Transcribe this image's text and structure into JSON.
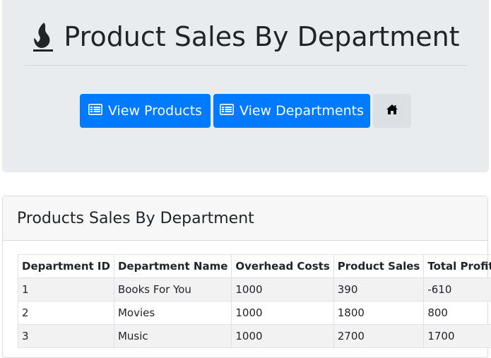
{
  "header": {
    "title": "Product Sales By Department",
    "logo_icon": "flame-icon"
  },
  "nav": {
    "view_products_label": "View Products",
    "view_departments_label": "View Departments",
    "home_icon": "home-icon",
    "button_icon": "list-icon"
  },
  "panel": {
    "title": "Products Sales By Department",
    "columns": [
      "Department ID",
      "Department Name",
      "Overhead Costs",
      "Product Sales",
      "Total Profit"
    ],
    "rows": [
      [
        "1",
        "Books For You",
        "1000",
        "390",
        "-610"
      ],
      [
        "2",
        "Movies",
        "1000",
        "1800",
        "800"
      ],
      [
        "3",
        "Music",
        "1000",
        "2700",
        "1700"
      ]
    ]
  },
  "colors": {
    "primary": "#007bff",
    "jumbotron_bg": "#e9ecef",
    "table_stripe": "#f2f2f2"
  }
}
